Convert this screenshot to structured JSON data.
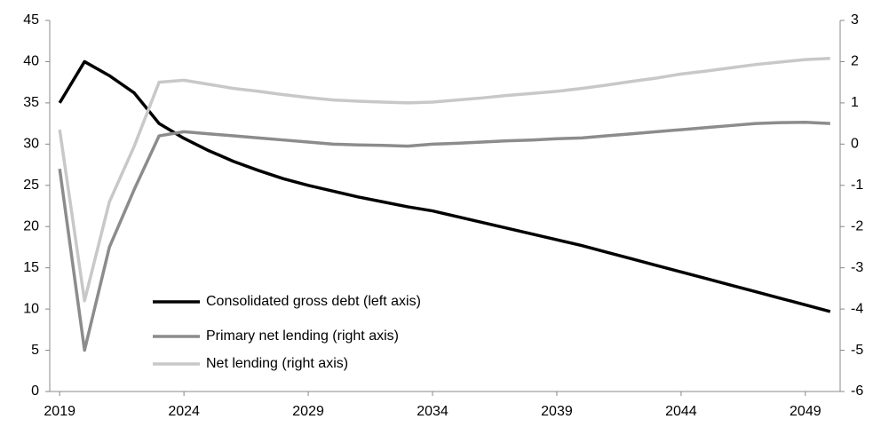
{
  "chart_data": {
    "type": "line",
    "x": [
      2019,
      2020,
      2021,
      2022,
      2023,
      2024,
      2025,
      2026,
      2027,
      2028,
      2029,
      2030,
      2031,
      2032,
      2033,
      2034,
      2035,
      2036,
      2037,
      2038,
      2039,
      2040,
      2041,
      2042,
      2043,
      2044,
      2045,
      2046,
      2047,
      2048,
      2049,
      2050
    ],
    "series": [
      {
        "name": "Consolidated gross debt (left axis)",
        "color": "#000000",
        "values": [
          35,
          40,
          38.3,
          36.2,
          32.5,
          30.7,
          29.2,
          27.9,
          26.8,
          25.8,
          25.0,
          24.3,
          23.6,
          23.0,
          22.4,
          21.9,
          21.2,
          20.5,
          19.8,
          19.1,
          18.4,
          17.7,
          16.9,
          16.1,
          15.3,
          14.5,
          13.7,
          12.9,
          12.1,
          11.3,
          10.5,
          9.7
        ]
      },
      {
        "name": "Primary net lending (right axis)",
        "color": "#8c8c8c",
        "axis": "y2",
        "values": [
          -0.6,
          -5.0,
          -2.5,
          -1.1,
          0.2,
          0.3,
          0.25,
          0.2,
          0.15,
          0.1,
          0.05,
          0.0,
          -0.02,
          -0.03,
          -0.05,
          0.0,
          0.02,
          0.05,
          0.08,
          0.1,
          0.13,
          0.15,
          0.2,
          0.25,
          0.3,
          0.35,
          0.4,
          0.45,
          0.5,
          0.52,
          0.53,
          0.5
        ]
      },
      {
        "name": "Net lending (right axis)",
        "color": "#c8c8c8",
        "axis": "y2",
        "values": [
          0.35,
          -3.8,
          -1.4,
          -0.05,
          1.5,
          1.55,
          1.45,
          1.35,
          1.28,
          1.2,
          1.13,
          1.07,
          1.04,
          1.02,
          1.0,
          1.02,
          1.07,
          1.12,
          1.18,
          1.23,
          1.28,
          1.35,
          1.43,
          1.52,
          1.6,
          1.7,
          1.77,
          1.85,
          1.93,
          1.99,
          2.05,
          2.08
        ]
      }
    ],
    "xlim": [
      2018.6,
      2050.4
    ],
    "xticks": [
      2019,
      2024,
      2029,
      2034,
      2039,
      2044,
      2049
    ],
    "ylim": [
      0,
      45
    ],
    "yticks": [
      0,
      5,
      10,
      15,
      20,
      25,
      30,
      35,
      40,
      45
    ],
    "y2lim": [
      -6,
      3
    ],
    "y2ticks": [
      -6,
      -5,
      -4,
      -3,
      -2,
      -1,
      0,
      1,
      2,
      3
    ],
    "grid": false,
    "legend": "lower left"
  }
}
